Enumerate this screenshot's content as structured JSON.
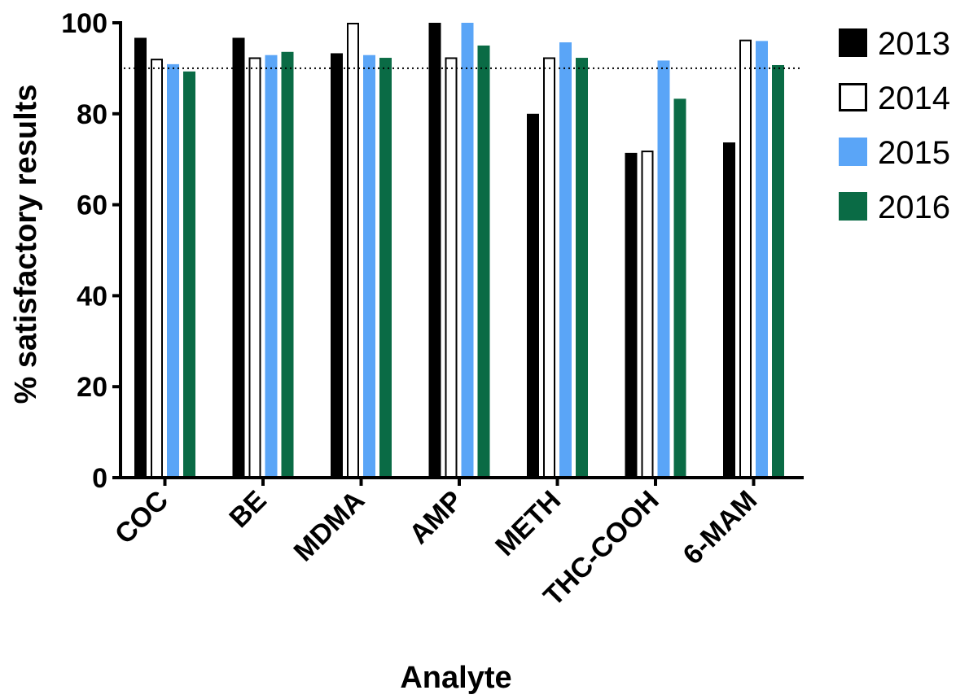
{
  "chart_data": {
    "type": "bar",
    "xlabel": "Analyte",
    "ylabel": "% satisfactory results",
    "ylim": [
      0,
      100
    ],
    "yticks": [
      "0",
      "20",
      "40",
      "60",
      "80",
      "100"
    ],
    "categories": [
      "COC",
      "BE",
      "MDMA",
      "AMP",
      "METH",
      "THC-COOH",
      "6-MAM"
    ],
    "series": [
      {
        "name": "2013",
        "color": "#000000",
        "values": [
          96.7,
          96.7,
          93.3,
          100,
          80,
          71.4,
          73.7
        ]
      },
      {
        "name": "2014",
        "color": "#ffffff",
        "values": [
          92.1,
          92.4,
          100,
          92.4,
          92.4,
          71.9,
          96.3
        ]
      },
      {
        "name": "2015",
        "color": "#5aa5f7",
        "values": [
          90.9,
          92.9,
          92.9,
          100,
          95.7,
          91.7,
          96.0
        ]
      },
      {
        "name": "2016",
        "color": "#0a6b45",
        "values": [
          89.3,
          93.6,
          92.3,
          95.0,
          92.3,
          83.3,
          90.7
        ]
      }
    ],
    "reference_line": {
      "value": 90,
      "style": "dotted"
    },
    "legend_position": "right",
    "grid": false
  }
}
